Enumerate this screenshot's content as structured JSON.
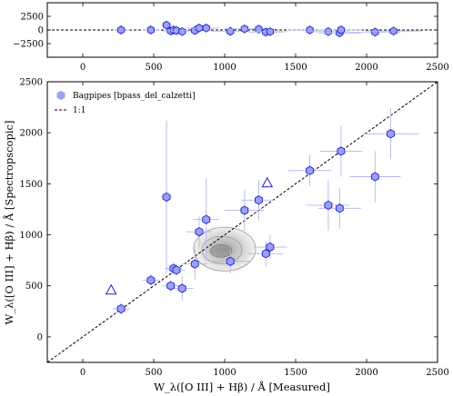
{
  "chart_data": [
    {
      "type": "scatter",
      "panel": "residual",
      "xlim": [
        -250,
        2500
      ],
      "ylim": [
        -5000,
        5000
      ],
      "x_ticks": [
        0,
        500,
        1000,
        1500,
        2000,
        2500
      ],
      "y_ticks": [
        2500,
        0,
        -2500
      ],
      "x_ticklabels": [
        "0",
        "500",
        "1000",
        "1500",
        "2000",
        "2500"
      ],
      "y_ticklabels": [
        "2500",
        "0",
        "−2500"
      ],
      "reference_line": {
        "type": "horizontal",
        "y": 0,
        "style": "dashed"
      },
      "points": [
        {
          "x": 270,
          "y": 0
        },
        {
          "x": 480,
          "y": 0
        },
        {
          "x": 590,
          "y": 900
        },
        {
          "x": 620,
          "y": -200
        },
        {
          "x": 640,
          "y": 0
        },
        {
          "x": 660,
          "y": -100
        },
        {
          "x": 700,
          "y": -300
        },
        {
          "x": 790,
          "y": -100
        },
        {
          "x": 820,
          "y": 350
        },
        {
          "x": 870,
          "y": 350
        },
        {
          "x": 1040,
          "y": -250
        },
        {
          "x": 1140,
          "y": 200
        },
        {
          "x": 1240,
          "y": 150
        },
        {
          "x": 1290,
          "y": -400
        },
        {
          "x": 1320,
          "y": -300
        },
        {
          "x": 1600,
          "y": 0
        },
        {
          "x": 1730,
          "y": -300
        },
        {
          "x": 1810,
          "y": -550
        },
        {
          "x": 1820,
          "y": 0
        },
        {
          "x": 2060,
          "y": -400
        },
        {
          "x": 2190,
          "y": -200
        }
      ]
    },
    {
      "type": "scatter",
      "panel": "main",
      "xlabel": "W_λ([O III] + Hβ) / Å  [Measured]",
      "ylabel": "W_λ([O III] + Hβ) / Å  [Spectropscopic]",
      "xlim": [
        -250,
        2500
      ],
      "ylim": [
        -250,
        2500
      ],
      "x_ticks": [
        0,
        500,
        1000,
        1500,
        2000,
        2500
      ],
      "y_ticks": [
        0,
        500,
        1000,
        1500,
        2000,
        2500
      ],
      "x_ticklabels": [
        "0",
        "500",
        "1000",
        "1500",
        "2000",
        "2500"
      ],
      "y_ticklabels": [
        "0",
        "500",
        "1000",
        "1500",
        "2000",
        "2500"
      ],
      "legend": {
        "position": "top-left",
        "entries": [
          "Bagpipes [bpass_del_calzetti]",
          "1:1"
        ]
      },
      "one_to_one_line": true,
      "density_contours_center": {
        "x": 1000,
        "y": 860
      },
      "colors": {
        "marker_fill": "#9aa2f0",
        "marker_edge": "#1f1fd6",
        "errorbar": "#b4b4ee",
        "contour": "#9a9a9a"
      },
      "points": [
        {
          "x": 270,
          "y": 275,
          "xerr": 60,
          "yerr": 60
        },
        {
          "x": 480,
          "y": 555,
          "xerr": 60,
          "yerr": 60
        },
        {
          "x": 590,
          "y": 1370,
          "xerr": 40,
          "yerr": 750
        },
        {
          "x": 620,
          "y": 500,
          "xerr": 60,
          "yerr": 60
        },
        {
          "x": 640,
          "y": 670,
          "xerr": 60,
          "yerr": 60
        },
        {
          "x": 660,
          "y": 655,
          "xerr": 60,
          "yerr": 60
        },
        {
          "x": 700,
          "y": 475,
          "xerr": 80,
          "yerr": 120
        },
        {
          "x": 790,
          "y": 715,
          "xerr": 90,
          "yerr": 150
        },
        {
          "x": 820,
          "y": 1030,
          "xerr": 90,
          "yerr": 150
        },
        {
          "x": 870,
          "y": 1150,
          "xerr": 90,
          "yerr": 400
        },
        {
          "x": 1040,
          "y": 740,
          "xerr": 140,
          "yerr": 120
        },
        {
          "x": 1140,
          "y": 1240,
          "xerr": 140,
          "yerr": 200
        },
        {
          "x": 1240,
          "y": 1340,
          "xerr": 120,
          "yerr": 200
        },
        {
          "x": 1290,
          "y": 815,
          "xerr": 120,
          "yerr": 120
        },
        {
          "x": 1320,
          "y": 880,
          "xerr": 120,
          "yerr": 120
        },
        {
          "x": 1600,
          "y": 1630,
          "xerr": 150,
          "yerr": 150
        },
        {
          "x": 1730,
          "y": 1290,
          "xerr": 150,
          "yerr": 250
        },
        {
          "x": 1810,
          "y": 1260,
          "xerr": 150,
          "yerr": 200
        },
        {
          "x": 1820,
          "y": 1820,
          "xerr": 150,
          "yerr": 250
        },
        {
          "x": 2060,
          "y": 1570,
          "xerr": 180,
          "yerr": 250
        },
        {
          "x": 2170,
          "y": 1990,
          "xerr": 200,
          "yerr": 250
        }
      ],
      "upper_limit_markers": [
        {
          "x": 200,
          "y": 460
        },
        {
          "x": 1300,
          "y": 1510
        }
      ]
    }
  ]
}
